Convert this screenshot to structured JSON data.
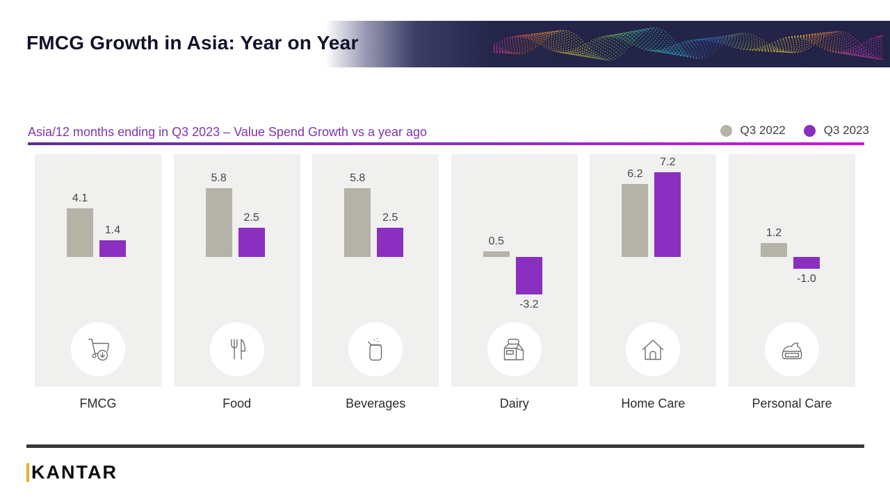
{
  "header": {
    "title": "FMCG Growth in Asia: Year on Year"
  },
  "subtitle": "Asia/12 months ending in Q3 2023 – Value Spend Growth vs a year ago",
  "legend": [
    {
      "label": "Q3 2022",
      "color": "#b5b2a7"
    },
    {
      "label": "Q3 2023",
      "color": "#8a2fc0"
    }
  ],
  "colors": {
    "q3_2022_bar": "#b5b2a7",
    "q3_2023_bar": "#8a2fc0",
    "subtitle_text": "#7d35ab",
    "accent_rule_start": "#5f2c8e",
    "accent_rule_end": "#cb16d4",
    "panel_background": "#f0f0ee",
    "banner_navy": "#232347",
    "brand_gold": "#e6b430"
  },
  "chart_data": {
    "type": "bar",
    "title": "FMCG Growth in Asia: Year on Year",
    "subtitle": "Asia/12 months ending in Q3 2023 – Value Spend Growth vs a year ago",
    "categories": [
      "FMCG",
      "Food",
      "Beverages",
      "Dairy",
      "Home Care",
      "Personal Care"
    ],
    "icons": [
      "cart-download-icon",
      "fork-knife-icon",
      "beverage-can-icon",
      "milk-carton-icon",
      "house-icon",
      "cream-jar-icon"
    ],
    "series": [
      {
        "name": "Q3 2022",
        "values": [
          4.1,
          5.8,
          5.8,
          0.5,
          6.2,
          1.2
        ]
      },
      {
        "name": "Q3 2023",
        "values": [
          1.4,
          2.5,
          2.5,
          -3.2,
          7.2,
          -1.0
        ]
      }
    ],
    "value_labels": true,
    "grid": false,
    "legend_position": "top-right",
    "ylim": [
      -4,
      8
    ]
  },
  "footer": {
    "brand": "KANTAR"
  }
}
